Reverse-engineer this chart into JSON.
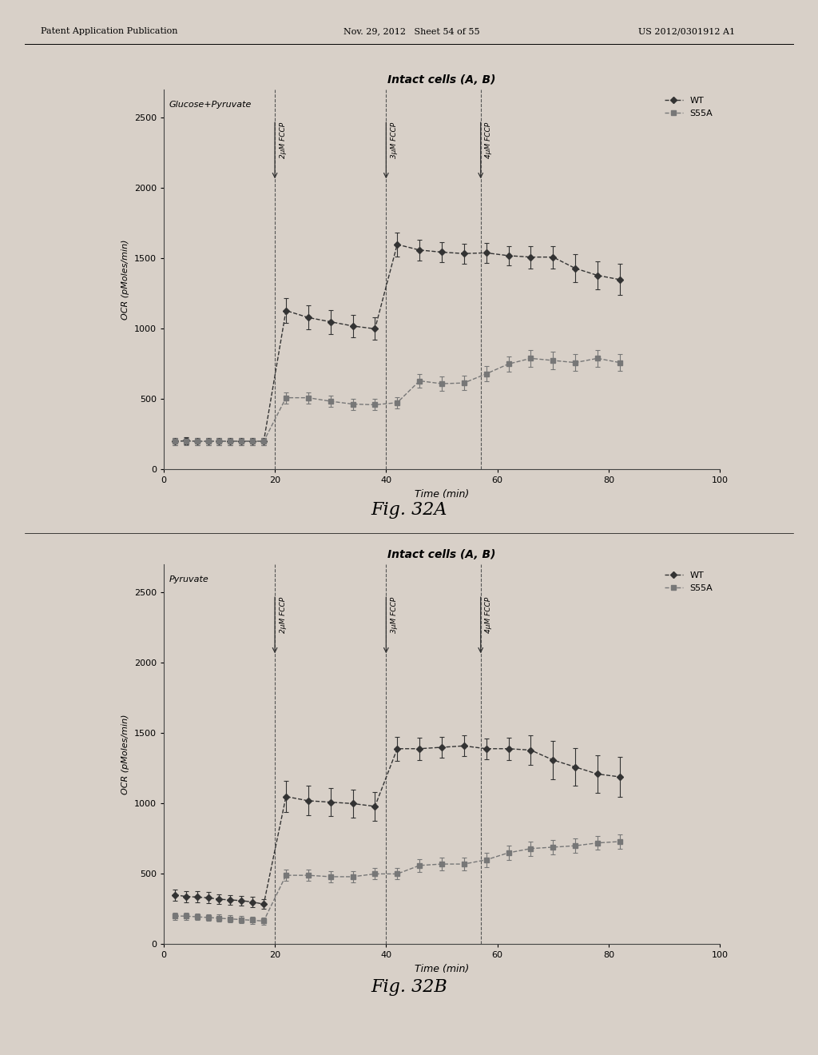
{
  "fig_A": {
    "title": "Intact cells (A, B)",
    "subtitle": "Glucose+Pyruvate",
    "xlabel": "Time (min)",
    "ylabel": "OCR (pMoles/min)",
    "fig_label": "Fig. 32A",
    "xlim": [
      0,
      100
    ],
    "ylim": [
      0,
      2700
    ],
    "yticks": [
      0,
      500,
      1000,
      1500,
      2000,
      2500
    ],
    "xticks": [
      0,
      20,
      40,
      60,
      80,
      100
    ],
    "vlines": [
      20,
      40,
      57
    ],
    "vline_labels": [
      "2μM FCCP",
      "3μM FCCP",
      "4μM FCCP"
    ],
    "WT": {
      "x": [
        2,
        4,
        6,
        8,
        10,
        12,
        14,
        16,
        18,
        22,
        26,
        30,
        34,
        38,
        42,
        46,
        50,
        54,
        58,
        62,
        66,
        70,
        74,
        78,
        82
      ],
      "y": [
        200,
        205,
        200,
        200,
        200,
        200,
        200,
        200,
        200,
        1130,
        1080,
        1050,
        1020,
        1000,
        1600,
        1560,
        1545,
        1535,
        1540,
        1520,
        1510,
        1510,
        1430,
        1380,
        1350
      ],
      "yerr": [
        25,
        25,
        25,
        25,
        25,
        25,
        25,
        25,
        25,
        90,
        85,
        85,
        80,
        80,
        85,
        75,
        70,
        70,
        70,
        70,
        80,
        80,
        100,
        100,
        110
      ]
    },
    "S55A": {
      "x": [
        2,
        4,
        6,
        8,
        10,
        12,
        14,
        16,
        18,
        22,
        26,
        30,
        34,
        38,
        42,
        46,
        50,
        54,
        58,
        62,
        66,
        70,
        74,
        78,
        82
      ],
      "y": [
        200,
        200,
        200,
        200,
        200,
        200,
        200,
        200,
        200,
        510,
        510,
        485,
        465,
        460,
        475,
        630,
        610,
        615,
        680,
        750,
        790,
        775,
        760,
        790,
        760
      ],
      "yerr": [
        25,
        25,
        25,
        25,
        25,
        25,
        25,
        25,
        25,
        40,
        40,
        40,
        40,
        40,
        40,
        50,
        50,
        50,
        55,
        55,
        60,
        60,
        60,
        60,
        60
      ]
    }
  },
  "fig_B": {
    "title": "Intact cells (A, B)",
    "subtitle": "Pyruvate",
    "xlabel": "Time (min)",
    "ylabel": "OCR (pMoles/min)",
    "fig_label": "Fig. 32B",
    "xlim": [
      0,
      100
    ],
    "ylim": [
      0,
      2700
    ],
    "yticks": [
      0,
      500,
      1000,
      1500,
      2000,
      2500
    ],
    "xticks": [
      0,
      20,
      40,
      60,
      80,
      100
    ],
    "vlines": [
      20,
      40,
      57
    ],
    "vline_labels": [
      "2μM FCCP",
      "3μM FCCP",
      "4μM FCCP"
    ],
    "WT": {
      "x": [
        2,
        4,
        6,
        8,
        10,
        12,
        14,
        16,
        18,
        22,
        26,
        30,
        34,
        38,
        42,
        46,
        50,
        54,
        58,
        62,
        66,
        70,
        74,
        78,
        82
      ],
      "y": [
        350,
        340,
        335,
        330,
        320,
        315,
        310,
        300,
        285,
        1050,
        1020,
        1010,
        1000,
        980,
        1390,
        1390,
        1400,
        1410,
        1390,
        1390,
        1380,
        1310,
        1260,
        1210,
        1190
      ],
      "yerr": [
        40,
        40,
        40,
        40,
        35,
        35,
        35,
        35,
        35,
        110,
        105,
        100,
        100,
        100,
        85,
        80,
        75,
        75,
        75,
        80,
        105,
        135,
        135,
        135,
        140
      ]
    },
    "S55A": {
      "x": [
        2,
        4,
        6,
        8,
        10,
        12,
        14,
        16,
        18,
        22,
        26,
        30,
        34,
        38,
        42,
        46,
        50,
        54,
        58,
        62,
        66,
        70,
        74,
        78,
        82
      ],
      "y": [
        200,
        200,
        195,
        190,
        185,
        180,
        175,
        170,
        165,
        490,
        490,
        480,
        480,
        500,
        500,
        560,
        570,
        570,
        600,
        650,
        680,
        690,
        700,
        720,
        730
      ],
      "yerr": [
        25,
        25,
        25,
        25,
        25,
        25,
        25,
        25,
        25,
        40,
        40,
        40,
        40,
        40,
        40,
        45,
        45,
        45,
        50,
        50,
        50,
        50,
        50,
        50,
        50
      ]
    }
  },
  "colors": {
    "WT": "#333333",
    "S55A": "#777777",
    "bg": "#d8d0c8",
    "plot_bg": "#d8d0c8"
  },
  "header_left": "Patent Application Publication",
  "header_mid": "Nov. 29, 2012   Sheet 54 of 55",
  "header_right": "US 2012/0301912 A1"
}
